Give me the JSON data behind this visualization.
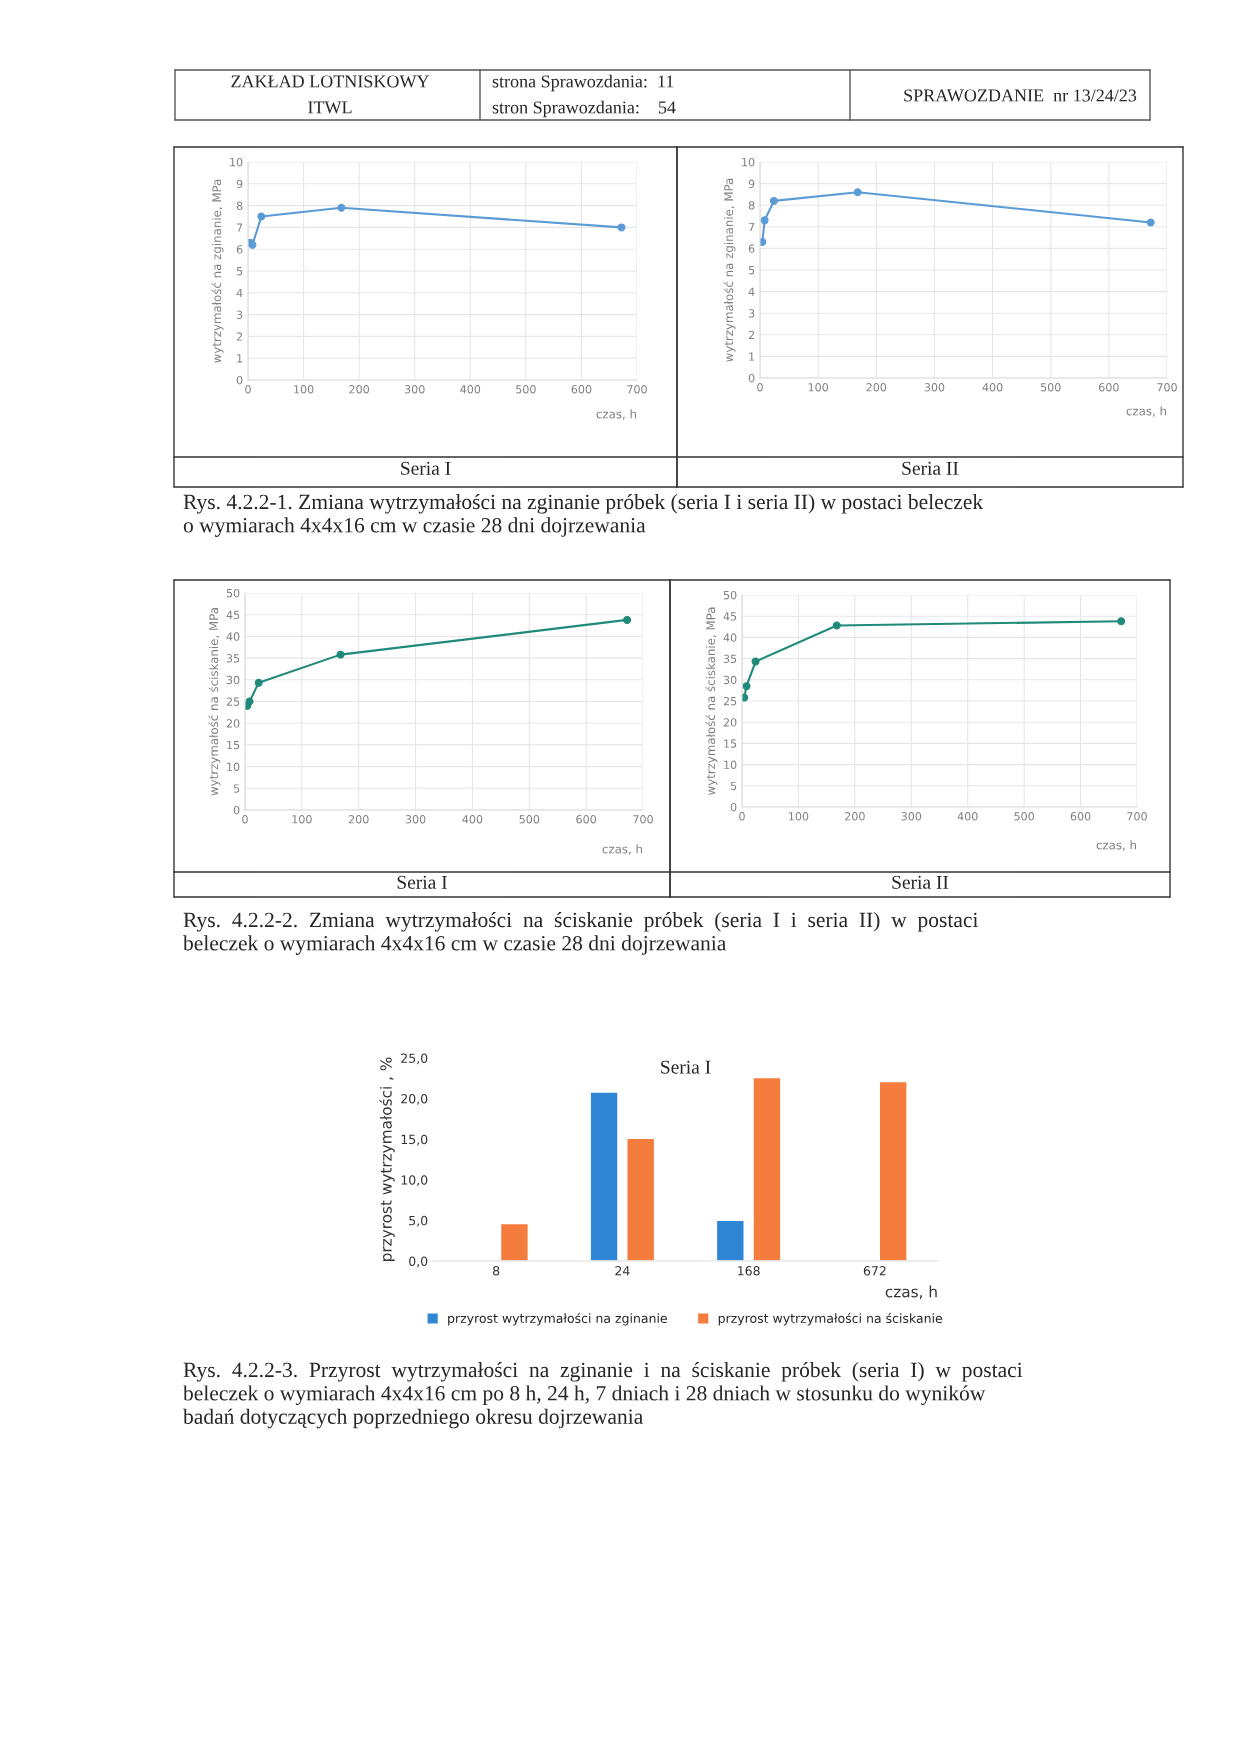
{
  "chart_data": [
    {
      "type": "line",
      "title": "Seria I",
      "xlabel": "czas, h",
      "ylabel": "wytrzymałość na zginanie, MPa",
      "xlim": [
        0,
        700
      ],
      "xticks": [
        0,
        100,
        200,
        300,
        400,
        500,
        600,
        700
      ],
      "ylim": [
        0,
        10
      ],
      "yticks": [
        0,
        1,
        2,
        3,
        4,
        5,
        6,
        7,
        8,
        9,
        10
      ],
      "grid": true,
      "marker": "circle",
      "line_style": "solid",
      "x": [
        4,
        8,
        24,
        168,
        672
      ],
      "series": [
        {
          "color": "#5b9bd5",
          "values": [
            6.3,
            6.2,
            7.5,
            7.9,
            7.0
          ]
        }
      ],
      "annotations": [
        "ZAKŁAD LOTNISKOWY",
        "ITWL",
        "strona Sprawozdania:  11",
        "stron Sprawozdania:    54",
        "SPRAWOZDANIE  nr 13/24/23"
      ]
    },
    {
      "type": "line",
      "title": "Seria II",
      "xlabel": "czas, h",
      "ylabel": "wytrzymałość na zginanie, MPa",
      "xlim": [
        0,
        700
      ],
      "xticks": [
        0,
        100,
        200,
        300,
        400,
        500,
        600,
        700
      ],
      "ylim": [
        0,
        10
      ],
      "yticks": [
        0,
        1,
        2,
        3,
        4,
        5,
        6,
        7,
        8,
        9,
        10
      ],
      "grid": true,
      "marker": "circle",
      "line_style": "solid",
      "x": [
        4,
        8,
        24,
        168,
        672
      ],
      "series": [
        {
          "color": "#5b9bd5",
          "values": [
            6.3,
            7.3,
            8.2,
            8.6,
            7.2
          ]
        }
      ],
      "annotations": [
        "Rys. 4.2.2-1. Zmiana wytrzymałości na zginanie próbek (seria I i seria II) w postaci beleczek\no wymiarach 4x4x16 cm w czasie 28 dni dojrzewania"
      ]
    },
    {
      "type": "line",
      "title": "Seria I",
      "xlabel": "czas, h",
      "ylabel": "wytrzymałość na ściskanie, MPa",
      "xlim": [
        0,
        700
      ],
      "xticks": [
        0,
        100,
        200,
        300,
        400,
        500,
        600,
        700
      ],
      "ylim": [
        0,
        50
      ],
      "yticks": [
        0,
        5,
        10,
        15,
        20,
        25,
        30,
        35,
        40,
        45,
        50
      ],
      "grid": true,
      "marker": "circle",
      "line_style": "solid",
      "x": [
        4,
        8,
        24,
        168,
        672
      ],
      "series": [
        {
          "color": "#1f8a7a",
          "values": [
            24.0,
            25.0,
            29.3,
            35.8,
            43.8
          ]
        }
      ]
    },
    {
      "type": "line",
      "title": "Seria II",
      "xlabel": "czas, h",
      "ylabel": "wytrzymałość na ściskanie, MPa",
      "xlim": [
        0,
        700
      ],
      "xticks": [
        0,
        100,
        200,
        300,
        400,
        500,
        600,
        700
      ],
      "ylim": [
        0,
        50
      ],
      "yticks": [
        0,
        5,
        10,
        15,
        20,
        25,
        30,
        35,
        40,
        45,
        50
      ],
      "grid": true,
      "marker": "circle",
      "line_style": "solid",
      "x": [
        4,
        8,
        24,
        168,
        672
      ],
      "series": [
        {
          "color": "#1f8a7a",
          "values": [
            25.8,
            28.5,
            34.3,
            42.8,
            43.8
          ]
        }
      ],
      "annotations": [
        "Rys.  4.2.2-2.  Zmiana  wytrzymałości  na  ściskanie  próbek  (seria  I  i  seria  II)  w  postaci\nbeleczek o wymiarach 4x4x16 cm w czasie 28 dni dojrzewania"
      ]
    },
    {
      "type": "bar",
      "title": "Seria I",
      "xlabel": "czas, h",
      "ylabel": "przyrost wytrzymałości , %",
      "categories": [
        "8",
        "24",
        "168",
        "672"
      ],
      "ylim": [
        0,
        25
      ],
      "yticks": [
        {
          "value": 0,
          "label": "0,0"
        },
        {
          "value": 5,
          "label": "5,0"
        },
        {
          "value": 10,
          "label": "10,0"
        },
        {
          "value": 15,
          "label": "15,0"
        },
        {
          "value": 20,
          "label": "20,0"
        },
        {
          "value": 25,
          "label": "25,0"
        }
      ],
      "grid": false,
      "legend": "bottom",
      "series": [
        {
          "name": "przyrost wytrzymałości na zginanie",
          "color": "#2e86d4",
          "values": [
            null,
            20.8,
            5.0,
            null
          ]
        },
        {
          "name": "przyrost wytrzymałości na ściskanie",
          "color": "#f47c3c",
          "values": [
            4.6,
            15.1,
            22.6,
            22.1
          ]
        }
      ],
      "annotations": [
        "Rys.  4.2.2-3.  Przyrost  wytrzymałości  na  zginanie  i  na  ściskanie  próbek  (seria  I)  w  postaci\nbeleczek o wymiarach 4x4x16 cm po 8 h, 24 h, 7 dniach i 28 dniach w stosunku do wyników\nbadań dotyczących poprzedniego okresu dojrzewania"
      ]
    }
  ]
}
